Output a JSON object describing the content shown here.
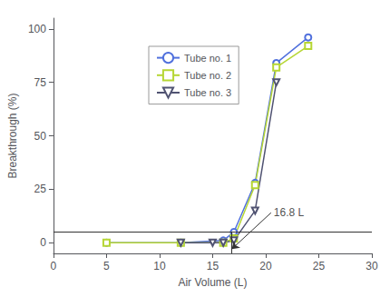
{
  "chart_data": {
    "type": "line",
    "xlabel": "Air Volume (L)",
    "ylabel": "Breakthrough (%)",
    "xlim": [
      0,
      30
    ],
    "ylim": [
      -5,
      105
    ],
    "xticks": [
      0,
      5,
      10,
      15,
      20,
      25,
      30
    ],
    "yticks": [
      0,
      25,
      50,
      75,
      100
    ],
    "series": [
      {
        "name": "Tube no. 1",
        "marker": "circle",
        "x": [
          5,
          12,
          16,
          17,
          19,
          21,
          24
        ],
        "values": [
          0,
          0,
          1,
          5,
          28,
          84,
          96
        ]
      },
      {
        "name": "Tube no. 2",
        "marker": "square",
        "x": [
          5,
          12,
          16,
          17,
          19,
          21,
          24
        ],
        "values": [
          0,
          0,
          0,
          2,
          27,
          82,
          92
        ]
      },
      {
        "name": "Tube no. 3",
        "marker": "triangle_down",
        "x": [
          12,
          15,
          16,
          17,
          19,
          21
        ],
        "values": [
          0,
          0,
          0,
          1,
          15,
          75
        ]
      }
    ],
    "reference_lines": [
      {
        "axis": "y",
        "value": 5
      },
      {
        "axis": "x",
        "value": 16.8,
        "from": -5,
        "to": 5
      }
    ],
    "annotations": [
      {
        "text": "16.8 L",
        "x": 20.5,
        "y": 14,
        "arrow_x": 16.8,
        "arrow_y": -3
      }
    ],
    "legend": "upper left",
    "grid": false
  }
}
